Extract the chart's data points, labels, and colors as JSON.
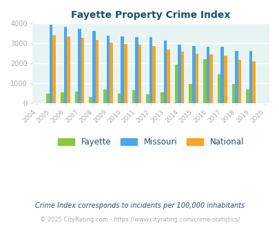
{
  "title": "Fayette Property Crime Index",
  "x_labels": [
    "2004",
    "2005",
    "2006",
    "2007",
    "2008",
    "2009",
    "2010",
    "2011",
    "2012",
    "2013",
    "2014",
    "2015",
    "2016",
    "2017",
    "2018",
    "2019",
    "2020"
  ],
  "bar_years_idx": [
    1,
    2,
    3,
    4,
    5,
    6,
    7,
    8,
    9,
    10,
    11,
    12,
    13,
    14,
    15
  ],
  "fayette": [
    500,
    560,
    580,
    320,
    680,
    500,
    660,
    440,
    560,
    1940,
    960,
    2200,
    1460,
    960,
    680
  ],
  "missouri": [
    3950,
    3840,
    3720,
    3640,
    3390,
    3360,
    3320,
    3320,
    3130,
    2940,
    2870,
    2830,
    2840,
    2640,
    2640
  ],
  "national": [
    3410,
    3340,
    3270,
    3190,
    3040,
    2960,
    2940,
    2880,
    2710,
    2600,
    2490,
    2460,
    2390,
    2180,
    2100
  ],
  "fayette_color": "#8dc63f",
  "missouri_color": "#4da6e8",
  "national_color": "#f5a623",
  "bg_color": "#e8f4f4",
  "title_color": "#1a4f72",
  "axis_color": "#4da6e8",
  "tick_color": "#aaaaaa",
  "ylabel_max": 4000,
  "ylabel_step": 1000,
  "footnote1": "Crime Index corresponds to incidents per 100,000 inhabitants",
  "footnote2": "© 2025 CityRating.com - https://www.cityrating.com/crime-statistics/",
  "footnote1_color": "#1a4f72",
  "footnote2_color": "#aaaaaa",
  "bar_width": 0.22
}
